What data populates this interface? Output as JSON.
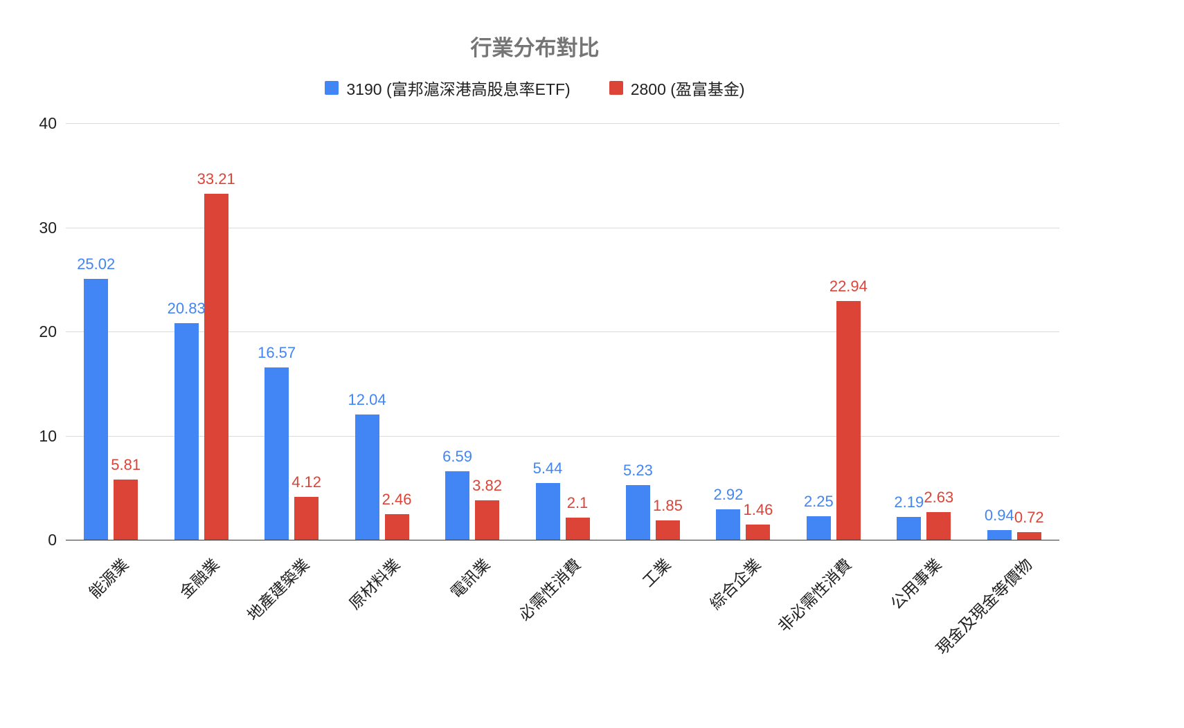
{
  "chart_data": {
    "type": "bar",
    "title": "行業分布對比",
    "categories": [
      "能源業",
      "金融業",
      "地產建築業",
      "原材料業",
      "電訊業",
      "必需性消費",
      "工業",
      "綜合企業",
      "非必需性消費",
      "公用事業",
      "現金及現金等價物"
    ],
    "series": [
      {
        "name": "3190 (富邦滬深港高股息率ETF)",
        "color": "#4285F4",
        "values": [
          25.02,
          20.83,
          16.57,
          12.04,
          6.59,
          5.44,
          5.23,
          2.92,
          2.25,
          2.19,
          0.94
        ]
      },
      {
        "name": "2800 (盈富基金)",
        "color": "#DB4437",
        "values": [
          5.81,
          33.21,
          4.12,
          2.46,
          3.82,
          2.1,
          1.85,
          1.46,
          22.94,
          2.63,
          0.72
        ]
      }
    ],
    "xlabel": "",
    "ylabel": "",
    "ylim": [
      0,
      40
    ],
    "yticks": [
      0,
      10,
      20,
      30,
      40
    ],
    "grid": true,
    "legend_position": "top",
    "value_labels": true
  }
}
